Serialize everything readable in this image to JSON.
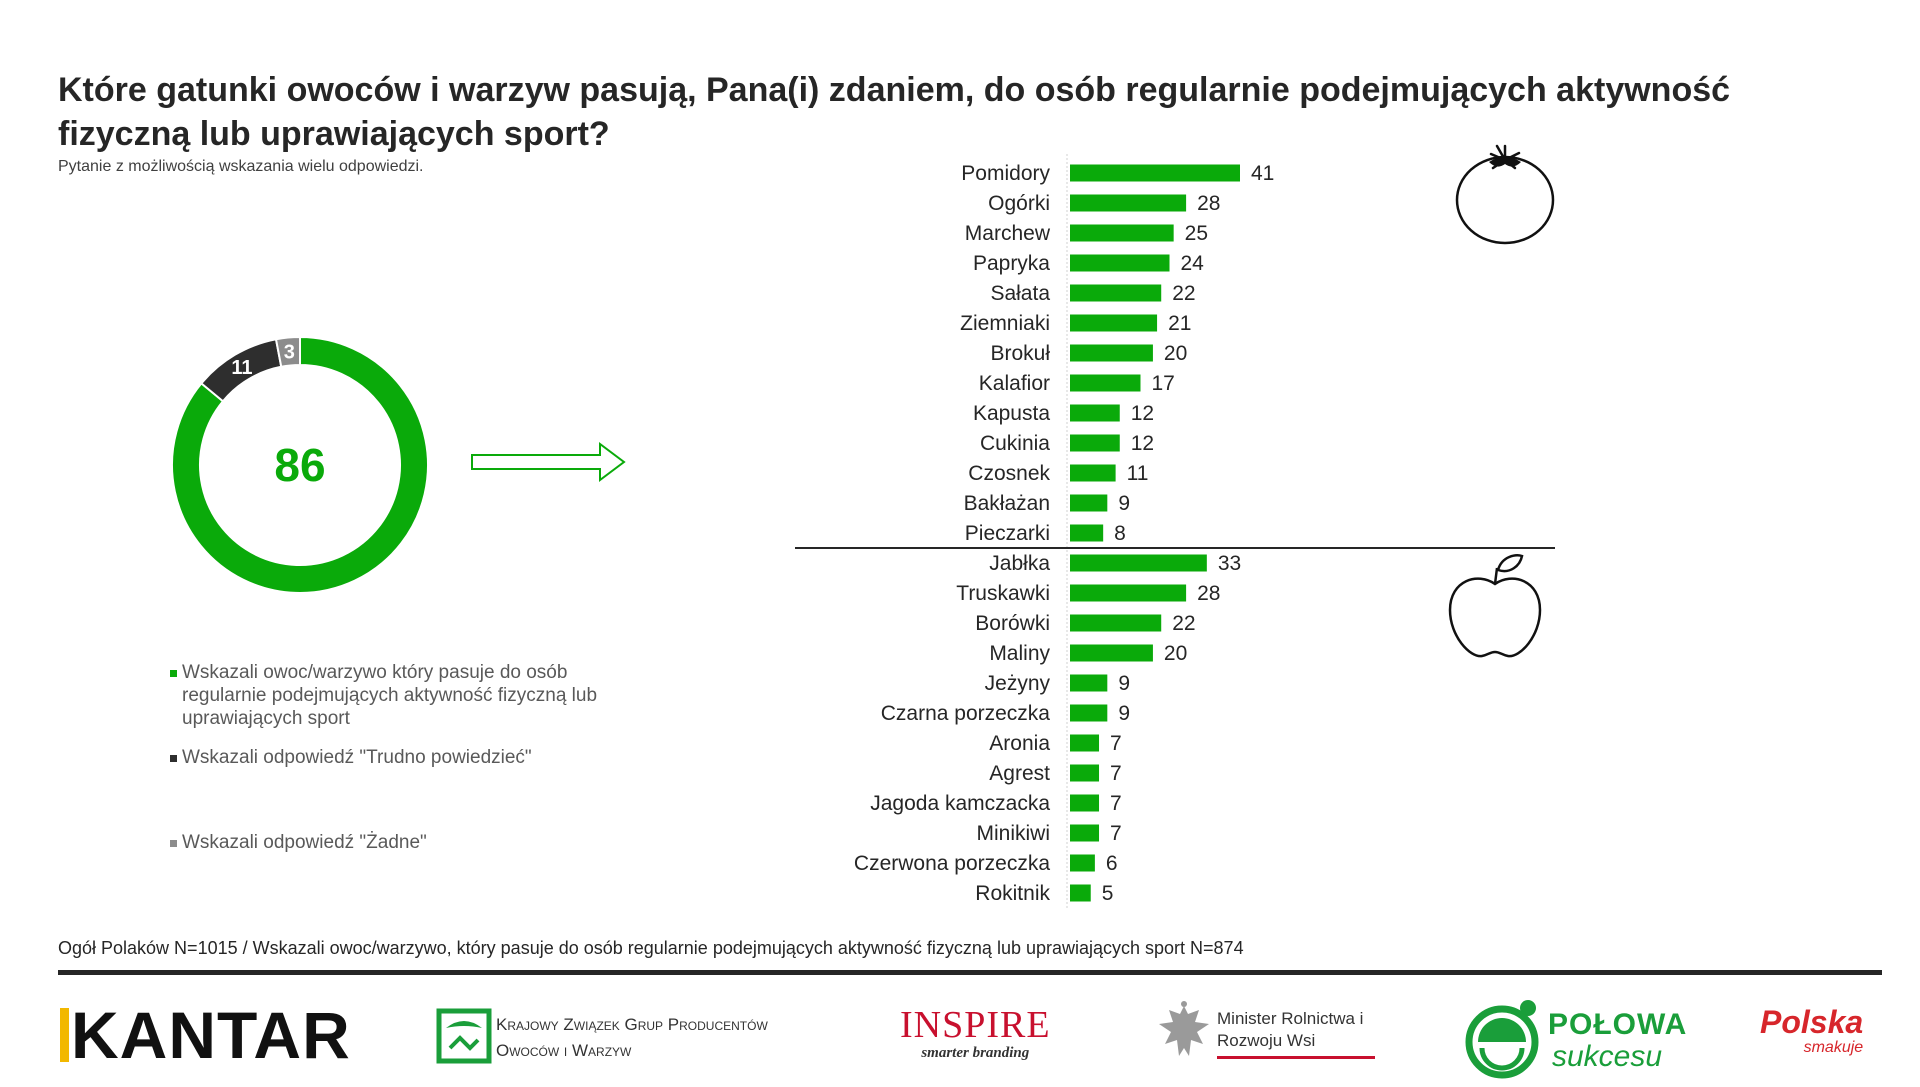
{
  "title": "Które gatunki owoców i warzyw pasują, Pana(i) zdaniem, do osób regularnie podejmujących aktywność fizyczną lub uprawiających sport?",
  "subtitle": "Pytanie z możliwością wskazania wielu odpowiedzi.",
  "footnote": "Ogół Polaków N=1015 / Wskazali owoc/warzywo, który pasuje do osób regularnie podejmujących aktywność fizyczną lub uprawiających sport N=874",
  "colors": {
    "green": "#0aaa0a",
    "dark": "#2e2e2e",
    "gray": "#8c8c8c"
  },
  "chart_data": [
    {
      "type": "pie",
      "variant": "donut",
      "center_label": "86",
      "slices": [
        {
          "name": "Wskazali owoc/warzywo który pasuje do osób regularnie podejmujących aktywność fizyczną lub uprawiających sport",
          "value": 86,
          "label": "86",
          "color": "#0aaa0a"
        },
        {
          "name": "Wskazali odpowiedź \"Trudno powiedzieć\"",
          "value": 11,
          "label": "11",
          "color": "#2e2e2e"
        },
        {
          "name": "Wskazali odpowiedź \"Żadne\"",
          "value": 3,
          "label": "3",
          "color": "#8c8c8c"
        }
      ],
      "legend_position": "bottom-left"
    },
    {
      "type": "bar",
      "orientation": "horizontal",
      "groups": [
        {
          "icon": "tomato-icon",
          "categories": [
            "Pomidory",
            "Ogórki",
            "Marchew",
            "Papryka",
            "Sałata",
            "Ziemniaki",
            "Brokuł",
            "Kalafior",
            "Kapusta",
            "Cukinia",
            "Czosnek",
            "Bakłażan",
            "Pieczarki"
          ],
          "values": [
            41,
            28,
            25,
            24,
            22,
            21,
            20,
            17,
            12,
            12,
            11,
            9,
            8
          ]
        },
        {
          "icon": "apple-icon",
          "categories": [
            "Jabłka",
            "Truskawki",
            "Borówki",
            "Maliny",
            "Jeżyny",
            "Czarna porzeczka",
            "Aronia",
            "Agrest",
            "Jagoda kamczacka",
            "Minikiwi",
            "Czerwona porzeczka",
            "Rokitnik"
          ],
          "values": [
            33,
            28,
            22,
            20,
            9,
            9,
            7,
            7,
            7,
            7,
            6,
            5
          ]
        }
      ],
      "xlim": [
        0,
        41
      ],
      "data_labels": true,
      "bar_color": "#0aaa0a"
    }
  ],
  "logos": {
    "kantar": "KANTAR",
    "kzg": "Krajowy Związek Grup Producentów Owoców i Warzyw",
    "inspire": "INSPIRE",
    "inspire_tagline": "smarter branding",
    "minister": "Minister Rolnictwa i Rozwoju Wsi",
    "polowa_1": "POŁOWA",
    "polowa_2": "sukcesu",
    "polska_1": "Polska",
    "polska_2": "smakuje"
  }
}
